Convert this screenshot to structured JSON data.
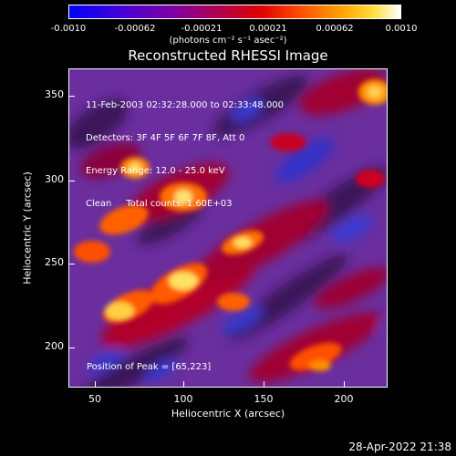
{
  "colorbar": {
    "ticks": [
      "-0.0010",
      "-0.00062",
      "-0.00021",
      "0.00021",
      "0.00062",
      "0.0010"
    ],
    "unit_label": "(photons cm⁻² s⁻¹ asec⁻²)"
  },
  "image": {
    "title": "Reconstructed RHESSI Image",
    "info_lines": [
      "11-Feb-2003 02:32:28.000 to 02:33:48.000",
      "Detectors: 3F 4F 5F 6F 7F 8F, Att 0",
      "Energy Range: 12.0 - 25.0 keV",
      "Clean     Total counts: 1.60E+03"
    ],
    "peak_text": "Position of Peak = [65,223]",
    "xlabel": "Heliocentric X (arcsec)",
    "ylabel": "Heliocentric Y (arcsec)",
    "xticks": [
      "50",
      "100",
      "150",
      "200"
    ],
    "yticks": [
      "350",
      "300",
      "250",
      "200"
    ],
    "colors": {
      "background": "#000000",
      "low": "#0000ff",
      "high": "#ffffff"
    }
  },
  "timestamp": "28-Apr-2022 21:38"
}
